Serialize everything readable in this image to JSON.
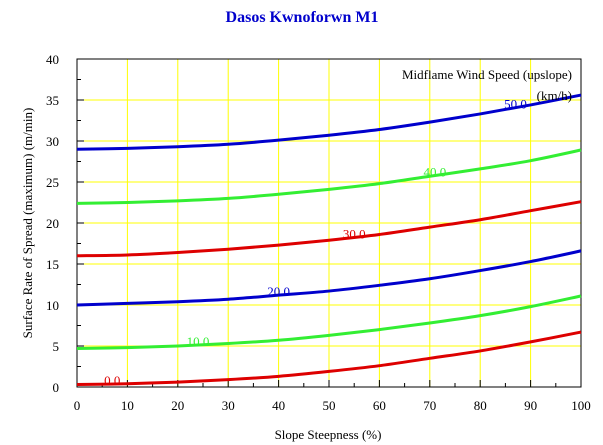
{
  "chart_data": {
    "type": "line",
    "title": "Dasos Kwnoforwn M1",
    "xlabel": "Slope Steepness (%)",
    "ylabel": "Surface Rate of Spread (maximum) (m/min)",
    "xlim": [
      0,
      100
    ],
    "ylim": [
      0,
      40
    ],
    "xticks": [
      0,
      10,
      20,
      30,
      40,
      50,
      60,
      70,
      80,
      90,
      100
    ],
    "yticks": [
      0,
      5,
      10,
      15,
      20,
      25,
      30,
      35,
      40
    ],
    "grid": true,
    "grid_color": "#ffff00",
    "legend": {
      "title_line1": "Midflame Wind Speed (upslope)",
      "title_line2": "(km/h)",
      "placement": "top-right"
    },
    "x": [
      0,
      10,
      20,
      30,
      40,
      50,
      60,
      70,
      80,
      90,
      100
    ],
    "series": [
      {
        "name": "0.0",
        "color": "#dd0000",
        "label_x": 7,
        "values": [
          0.3,
          0.4,
          0.6,
          0.9,
          1.3,
          1.9,
          2.6,
          3.5,
          4.4,
          5.5,
          6.7
        ]
      },
      {
        "name": "10.0",
        "color": "#33ee33",
        "label_x": 24,
        "values": [
          4.7,
          4.8,
          5.0,
          5.3,
          5.7,
          6.3,
          7.0,
          7.8,
          8.7,
          9.8,
          11.1
        ]
      },
      {
        "name": "20.0",
        "color": "#0000cc",
        "label_x": 40,
        "values": [
          10.0,
          10.2,
          10.4,
          10.7,
          11.2,
          11.7,
          12.4,
          13.2,
          14.2,
          15.3,
          16.6
        ]
      },
      {
        "name": "30.0",
        "color": "#dd0000",
        "label_x": 55,
        "values": [
          16.0,
          16.1,
          16.4,
          16.8,
          17.3,
          17.9,
          18.6,
          19.5,
          20.4,
          21.5,
          22.6
        ]
      },
      {
        "name": "40.0",
        "color": "#33ee33",
        "label_x": 71,
        "values": [
          22.4,
          22.5,
          22.7,
          23.0,
          23.5,
          24.1,
          24.8,
          25.7,
          26.6,
          27.6,
          28.9
        ]
      },
      {
        "name": "50.0",
        "color": "#0000cc",
        "label_x": 87,
        "values": [
          29.0,
          29.1,
          29.3,
          29.6,
          30.1,
          30.7,
          31.4,
          32.3,
          33.3,
          34.4,
          35.6
        ]
      }
    ]
  }
}
